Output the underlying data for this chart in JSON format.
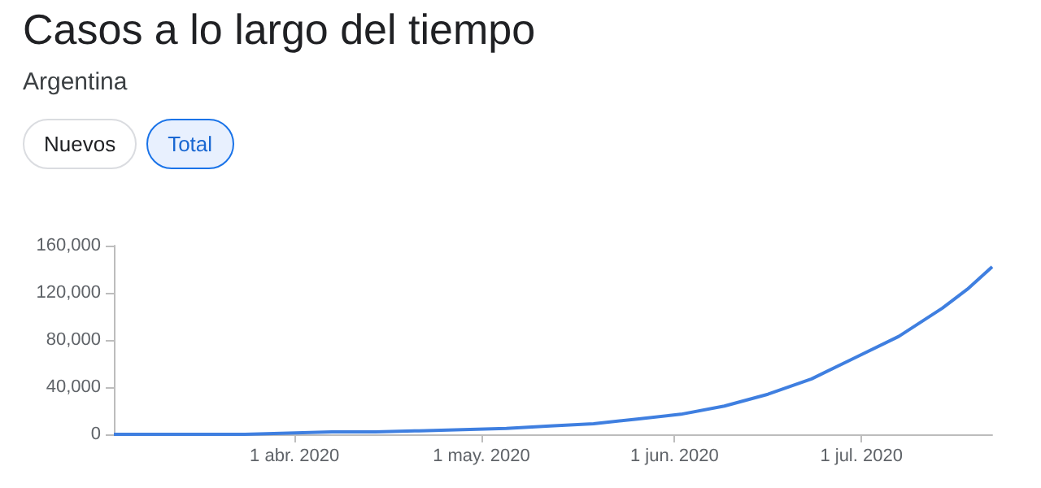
{
  "chart_data": {
    "type": "line",
    "title": "Casos a lo largo del tiempo",
    "subtitle": "Argentina",
    "annotations": [
      "Nuevos",
      "Total"
    ],
    "x": [
      "2020-03-03",
      "2020-03-10",
      "2020-03-17",
      "2020-03-24",
      "2020-03-31",
      "2020-04-07",
      "2020-04-14",
      "2020-04-21",
      "2020-04-28",
      "2020-05-05",
      "2020-05-12",
      "2020-05-19",
      "2020-05-26",
      "2020-06-02",
      "2020-06-09",
      "2020-06-16",
      "2020-06-23",
      "2020-06-30",
      "2020-07-07",
      "2020-07-14",
      "2020-07-18",
      "2020-07-22"
    ],
    "series": [
      {
        "color": "#3f7fe0",
        "values": [
          0,
          0,
          0,
          0,
          1000,
          2000,
          2000,
          3000,
          4000,
          5000,
          7000,
          9000,
          13000,
          17000,
          24000,
          34000,
          47000,
          65000,
          83000,
          107000,
          123000,
          142000
        ]
      }
    ],
    "xlim": [
      "2020-03-03",
      "2020-07-22"
    ],
    "xticks": [
      {
        "value": "2020-04-01",
        "label": "1 abr. 2020"
      },
      {
        "value": "2020-05-01",
        "label": "1 may. 2020"
      },
      {
        "value": "2020-06-01",
        "label": "1 jun. 2020"
      },
      {
        "value": "2020-07-01",
        "label": "1 jul. 2020"
      }
    ],
    "ylim": [
      0,
      160000
    ],
    "yticks": [
      {
        "value": 0,
        "label": "0"
      },
      {
        "value": 40000,
        "label": "40,000"
      },
      {
        "value": 80000,
        "label": "80,000"
      },
      {
        "value": 120000,
        "label": "120,000"
      },
      {
        "value": 160000,
        "label": "160,000"
      }
    ],
    "grid": false,
    "marker": "none",
    "line_style": "solid"
  }
}
